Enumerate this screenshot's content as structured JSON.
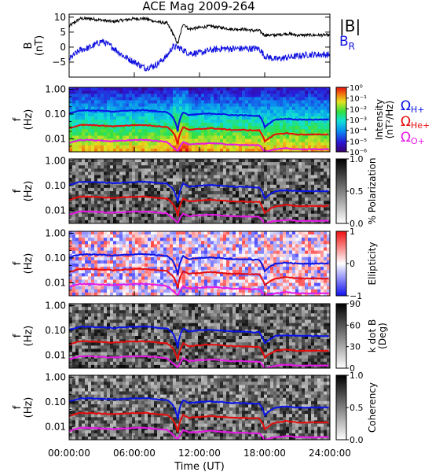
{
  "title": "ACE Mag 2009-264",
  "colors": {
    "b_mag": "#000000",
    "b_r": "#1010e0",
    "he_plus": "#0a14e6",
    "he_plus_plus": "#e60c0c",
    "o_plus": "#e619e6",
    "polarization_high": "#1a1a1a",
    "ellipticity_pos": "#e82020",
    "ellipticity_neg": "#2a35e8"
  },
  "legend": {
    "b_mag": "|B|",
    "b_r": "B",
    "b_r_sub": "R",
    "h_plus": "Ω",
    "h_plus_sub": "H+",
    "he_plus": "Ω",
    "he_plus_sub": "He+",
    "o_plus": "Ω",
    "o_plus_sub": "O+"
  },
  "x_axis": {
    "label": "Time (UT)",
    "ticks": [
      "00:00:00",
      "06:00:00",
      "12:00:00",
      "18:00:00",
      "24:00:00"
    ]
  },
  "chart_data": [
    {
      "type": "line",
      "panel": "magnetic-field",
      "ylabel": "B",
      "yunit": "(nT)",
      "ylim": [
        -10,
        11
      ],
      "yticks": [
        "10",
        "5",
        "0",
        "−5"
      ],
      "x_hours": [
        0,
        1,
        2,
        3,
        4,
        5,
        6,
        7,
        8,
        9,
        9.5,
        10,
        10.5,
        11,
        12,
        13,
        14,
        15,
        16,
        17,
        17.5,
        18,
        19,
        20,
        21,
        22,
        23,
        24
      ],
      "series": [
        {
          "name": "|B|",
          "values": [
            7,
            9.5,
            9.5,
            9,
            8.5,
            9,
            9.5,
            9.5,
            8.5,
            8,
            5,
            1,
            8,
            6,
            6.5,
            7,
            6.5,
            6,
            6,
            5.5,
            5.5,
            4,
            4,
            4.5,
            4,
            4,
            4,
            4
          ]
        },
        {
          "name": "B_R",
          "values": [
            -4,
            -1,
            0,
            2,
            0,
            -3,
            -5,
            -7,
            -6,
            -3,
            0,
            0,
            -1,
            -2,
            -2,
            -1,
            -0.5,
            -0.5,
            -0.5,
            -0.5,
            -0.5,
            -3,
            -4,
            -3.5,
            -3,
            -2.5,
            -2.5,
            -2.5
          ]
        }
      ]
    },
    {
      "type": "heatmap",
      "panel": "intensity",
      "ylabel": "f",
      "yunit": "(Hz)",
      "yscale": "log",
      "ylim": [
        0.003,
        1.2
      ],
      "yticks": [
        "1.00",
        "0.10",
        "0.01"
      ],
      "colorbar": {
        "scale": "log",
        "range": [
          1e-06,
          1
        ],
        "ticks": [
          "10⁰",
          "10⁻¹",
          "10⁻²",
          "10⁻³",
          "10⁻⁴",
          "10⁻⁵",
          "10⁻⁶"
        ],
        "label": "Intensity",
        "unit": "(nT²/Hz)"
      }
    },
    {
      "type": "heatmap",
      "panel": "polarization",
      "ylabel": "f",
      "yunit": "(Hz)",
      "yscale": "log",
      "yticks": [
        "1.00",
        "0.10",
        "0.01"
      ],
      "colorbar": {
        "range": [
          0,
          1
        ],
        "ticks": [
          "1.0",
          "0.5",
          "0.0"
        ],
        "label": "% Polarization"
      }
    },
    {
      "type": "heatmap",
      "panel": "ellipticity",
      "ylabel": "f",
      "yunit": "(Hz)",
      "yscale": "log",
      "yticks": [
        "1.00",
        "0.10",
        "0.01"
      ],
      "colorbar": {
        "range": [
          -1,
          1
        ],
        "ticks": [
          "1",
          "0",
          "−1"
        ],
        "label": "Ellipticity"
      }
    },
    {
      "type": "heatmap",
      "panel": "wave-normal-angle",
      "ylabel": "f",
      "yunit": "(Hz)",
      "yscale": "log",
      "yticks": [
        "1.00",
        "0.10",
        "0.01"
      ],
      "colorbar": {
        "range": [
          0,
          90
        ],
        "ticks": [
          "90",
          "60",
          "30",
          "0"
        ],
        "label": "k dot B",
        "unit": "(Deg)"
      }
    },
    {
      "type": "heatmap",
      "panel": "coherency",
      "ylabel": "f",
      "yunit": "(Hz)",
      "yscale": "log",
      "yticks": [
        "1.00",
        "0.10",
        "0.01"
      ],
      "colorbar": {
        "range": [
          0,
          1
        ],
        "ticks": [
          "1.0",
          "0.5",
          "0.0"
        ],
        "label": "Coherency"
      }
    }
  ],
  "gyro_frequencies": {
    "x_hours": [
      0,
      1,
      2,
      3,
      4,
      5,
      6,
      7,
      8,
      9,
      9.5,
      10,
      10.5,
      11,
      12,
      13,
      14,
      15,
      16,
      17,
      17.5,
      18,
      19,
      20,
      21,
      22,
      23,
      24
    ],
    "H+": [
      0.105,
      0.14,
      0.14,
      0.135,
      0.125,
      0.135,
      0.14,
      0.145,
      0.13,
      0.12,
      0.08,
      0.02,
      0.12,
      0.09,
      0.1,
      0.105,
      0.1,
      0.09,
      0.09,
      0.085,
      0.085,
      0.03,
      0.06,
      0.065,
      0.06,
      0.06,
      0.06,
      0.06
    ],
    "He+": [
      0.027,
      0.036,
      0.036,
      0.034,
      0.032,
      0.034,
      0.036,
      0.036,
      0.033,
      0.03,
      0.02,
      0.006,
      0.03,
      0.023,
      0.025,
      0.027,
      0.025,
      0.023,
      0.023,
      0.022,
      0.022,
      0.008,
      0.015,
      0.017,
      0.015,
      0.015,
      0.015,
      0.015
    ],
    "O+": [
      0.0068,
      0.009,
      0.009,
      0.0085,
      0.008,
      0.0085,
      0.009,
      0.009,
      0.0083,
      0.0075,
      0.005,
      0.003,
      0.0075,
      0.0058,
      0.0063,
      0.0068,
      0.0063,
      0.0058,
      0.0058,
      0.0055,
      0.0055,
      0.003,
      0.0038,
      0.0042,
      0.0038,
      0.0038,
      0.0038,
      0.0038
    ]
  }
}
